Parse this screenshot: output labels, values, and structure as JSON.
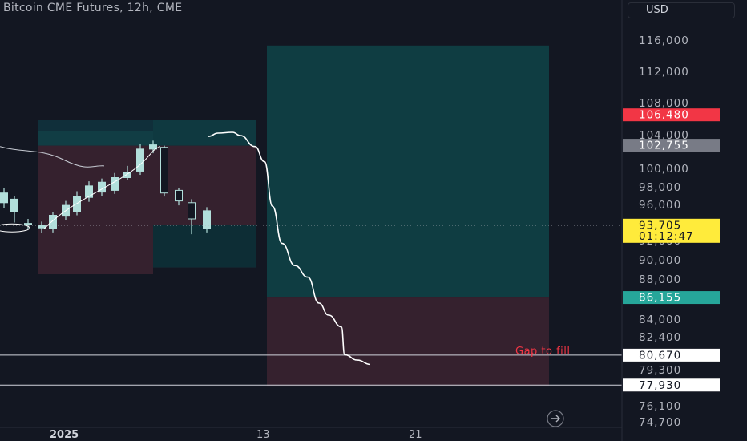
{
  "header": {
    "title": "Bitcoin CME Futures, 12h, CME",
    "currency": "USD"
  },
  "annotation": "Gap to fill",
  "colors": {
    "background": "#131722",
    "profit_zone": "#0f3a45",
    "loss_zone": "#3a2230",
    "candle_up": "#b2dfdb",
    "line": "#ffffff",
    "tag_red": "#f23645",
    "tag_gray": "#787b86",
    "tag_yellow": "#ffeb3b",
    "tag_teal": "#26a69a",
    "tag_white": "#ffffff"
  },
  "chart_data": {
    "type": "line",
    "symbol": "Bitcoin CME Futures",
    "interval": "12h",
    "exchange": "CME",
    "y_axis": {
      "ticks": [
        116000,
        112000,
        108000,
        104000,
        100000,
        98000,
        96000,
        92000,
        90000,
        88000,
        84000,
        82400,
        79300,
        76100,
        74700
      ],
      "tick_labels": [
        "116,000",
        "112,000",
        "108,000",
        "104,000",
        "100,000",
        "98,000",
        "96,000",
        "92,000",
        "90,000",
        "88,000",
        "84,000",
        "82,400",
        "79,300",
        "76,100",
        "74,700"
      ],
      "range": [
        74000,
        119000
      ]
    },
    "x_axis": {
      "tick_labels": [
        {
          "label": "2025",
          "bold": true
        },
        {
          "label": "13",
          "bold": false
        },
        {
          "label": "21",
          "bold": false
        }
      ]
    },
    "price_tags": [
      {
        "value": 106480,
        "label": "106,480",
        "style": "red"
      },
      {
        "value": 102755,
        "label": "102,755",
        "style": "gray"
      },
      {
        "value": 93705,
        "label": "93,705",
        "sublabel": "01:12:47",
        "style": "yellow"
      },
      {
        "value": 86155,
        "label": "86,155",
        "style": "teal"
      },
      {
        "value": 80670,
        "label": "80,670",
        "style": "white"
      },
      {
        "value": 77930,
        "label": "77,930",
        "style": "white"
      }
    ],
    "horizontal_lines": [
      80670,
      77930
    ],
    "current_price": 93705,
    "candles": [
      {
        "x": 5,
        "open": 96200,
        "close": 97300,
        "high": 97900,
        "low": 95600
      },
      {
        "x": 18,
        "open": 95200,
        "close": 96600,
        "high": 97000,
        "low": 94000
      },
      {
        "x": 35,
        "open": 93800,
        "close": 93900,
        "high": 94400,
        "low": 93300
      },
      {
        "x": 52,
        "open": 93400,
        "close": 93700,
        "high": 94100,
        "low": 92800
      },
      {
        "x": 66,
        "open": 93300,
        "close": 94800,
        "high": 95200,
        "low": 92900
      },
      {
        "x": 82,
        "open": 94700,
        "close": 95900,
        "high": 96400,
        "low": 94300
      },
      {
        "x": 96,
        "open": 95200,
        "close": 96900,
        "high": 97500,
        "low": 94800
      },
      {
        "x": 111,
        "open": 96800,
        "close": 98100,
        "high": 98600,
        "low": 96300
      },
      {
        "x": 127,
        "open": 97400,
        "close": 98500,
        "high": 98900,
        "low": 97000
      },
      {
        "x": 143,
        "open": 97600,
        "close": 99000,
        "high": 99500,
        "low": 97200
      },
      {
        "x": 159,
        "open": 99000,
        "close": 99600,
        "high": 100300,
        "low": 98700
      },
      {
        "x": 175,
        "open": 99700,
        "close": 102300,
        "high": 102900,
        "low": 99300
      },
      {
        "x": 191,
        "open": 102300,
        "close": 102800,
        "high": 103300,
        "low": 101800
      },
      {
        "x": 205,
        "open": 102500,
        "close": 97300,
        "high": 102700,
        "low": 96900
      },
      {
        "x": 223,
        "open": 97600,
        "close": 96400,
        "high": 97900,
        "low": 95900
      },
      {
        "x": 239,
        "open": 96200,
        "close": 94400,
        "high": 96600,
        "low": 92700
      },
      {
        "x": 258,
        "open": 93300,
        "close": 95300,
        "high": 95700,
        "low": 92900
      }
    ],
    "projection_line": [
      [
        260,
        103800
      ],
      [
        272,
        104200
      ],
      [
        290,
        104300
      ],
      [
        300,
        103900
      ],
      [
        318,
        102600
      ],
      [
        330,
        100800
      ],
      [
        340,
        95800
      ],
      [
        352,
        91700
      ],
      [
        368,
        89400
      ],
      [
        384,
        88200
      ],
      [
        398,
        85600
      ],
      [
        410,
        84400
      ],
      [
        426,
        83300
      ],
      [
        430,
        80700
      ],
      [
        446,
        80200
      ],
      [
        462,
        79800
      ]
    ],
    "position_tools": [
      {
        "left": 48,
        "right": 191,
        "entry": 102700,
        "target": 104500,
        "stop": 88500
      },
      {
        "left": 191,
        "right": 320,
        "entry": 102700,
        "target": 105800,
        "stop": 89200
      },
      {
        "left": 333,
        "right": 685,
        "entry": 86155,
        "target": 115300,
        "stop": 77800
      }
    ]
  }
}
